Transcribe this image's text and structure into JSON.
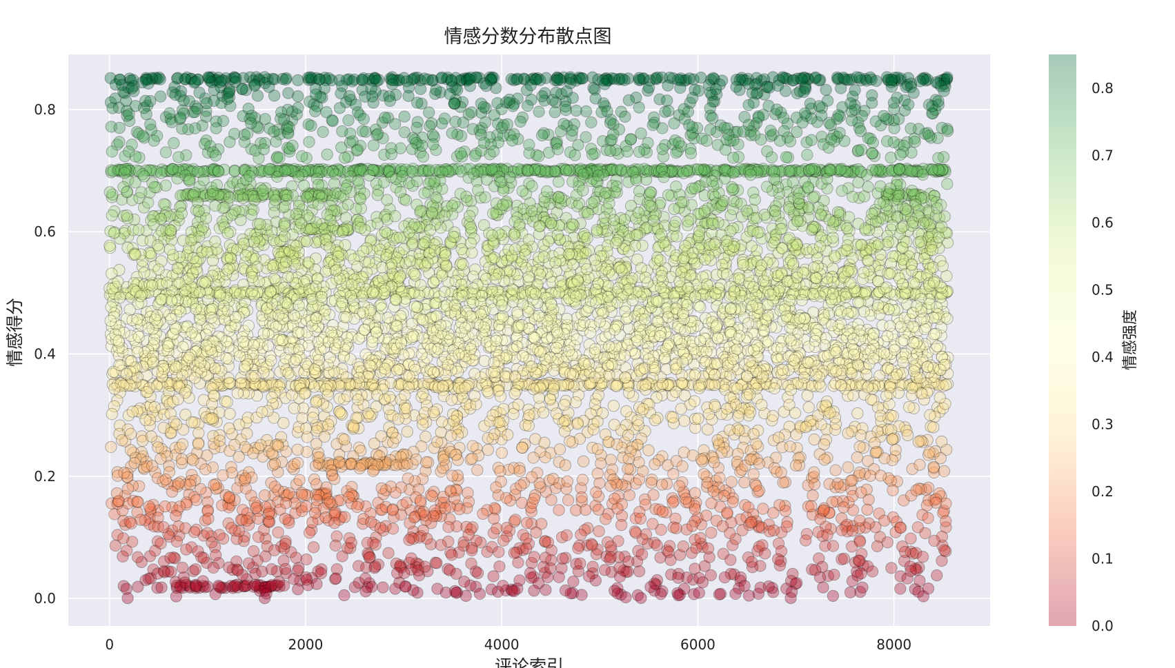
{
  "chart_data": {
    "type": "scatter",
    "title": "情感分数分布散点图",
    "xlabel": "评论索引",
    "ylabel": "情感得分",
    "xlim": [
      -420,
      8980
    ],
    "ylim": [
      -0.045,
      0.89
    ],
    "x_ticks": [
      0,
      2000,
      4000,
      6000,
      8000
    ],
    "x_tick_labels": [
      "0",
      "2000",
      "4000",
      "6000",
      "8000"
    ],
    "y_ticks": [
      0.0,
      0.2,
      0.4,
      0.6,
      0.8
    ],
    "y_tick_labels": [
      "0.0",
      "0.2",
      "0.4",
      "0.6",
      "0.8"
    ],
    "grid": true,
    "background": "#eaeaf2",
    "marker_alpha": 0.35,
    "marker_edge": "#000000",
    "n_points_approx": 8550,
    "colormap": [
      "#a50026",
      "#f46d43",
      "#fee08b",
      "#ffffbf",
      "#d9ef8b",
      "#66bd63",
      "#006837"
    ],
    "colorbar": {
      "label": "情感强度",
      "range": [
        0.0,
        0.85
      ],
      "ticks": [
        0.0,
        0.1,
        0.2,
        0.3,
        0.4,
        0.5,
        0.6,
        0.7,
        0.8
      ],
      "tick_labels": [
        "0.0",
        "0.1",
        "0.2",
        "0.3",
        "0.4",
        "0.5",
        "0.6",
        "0.7",
        "0.8"
      ]
    },
    "series": [
      {
        "kind": "band",
        "x_range": [
          0,
          8550
        ],
        "y": 0.85,
        "count": 240
      },
      {
        "kind": "band",
        "x_range": [
          0,
          8550
        ],
        "y": 0.7,
        "count": 460
      },
      {
        "kind": "band",
        "x_range": [
          0,
          8550
        ],
        "y": 0.5,
        "count": 300
      },
      {
        "kind": "band",
        "x_range": [
          0,
          8550
        ],
        "y": 0.35,
        "count": 340
      },
      {
        "kind": "band",
        "x_range": [
          650,
          1800
        ],
        "y": 0.66,
        "count": 60
      },
      {
        "kind": "band",
        "x_range": [
          2000,
          2400
        ],
        "y": 0.66,
        "count": 25
      },
      {
        "kind": "band",
        "x_range": [
          7900,
          8500
        ],
        "y": 0.66,
        "count": 25
      },
      {
        "kind": "band",
        "x_range": [
          2000,
          2450
        ],
        "y": 0.605,
        "count": 25
      },
      {
        "kind": "band",
        "x_range": [
          1750,
          1900
        ],
        "y": 0.565,
        "count": 10
      },
      {
        "kind": "band",
        "x_range": [
          1750,
          1900
        ],
        "y": 0.42,
        "count": 8
      },
      {
        "kind": "band",
        "x_range": [
          2000,
          3100
        ],
        "y": 0.22,
        "count": 35
      },
      {
        "kind": "band",
        "x_range": [
          2000,
          2250
        ],
        "y": 0.17,
        "count": 10
      },
      {
        "kind": "band",
        "x_range": [
          650,
          1750
        ],
        "y": 0.02,
        "count": 45
      },
      {
        "kind": "scatter",
        "x_range": [
          0,
          8550
        ],
        "y_range": [
          0.72,
          0.85
        ],
        "count": 650
      },
      {
        "kind": "scatter",
        "x_range": [
          0,
          8550
        ],
        "y_range": [
          0.36,
          0.7
        ],
        "count": 3600
      },
      {
        "kind": "scatter",
        "x_range": [
          0,
          8550
        ],
        "y_range": [
          0.23,
          0.35
        ],
        "count": 650
      },
      {
        "kind": "scatter",
        "x_range": [
          0,
          8550
        ],
        "y_range": [
          0.0,
          0.23
        ],
        "count": 1100
      }
    ]
  }
}
